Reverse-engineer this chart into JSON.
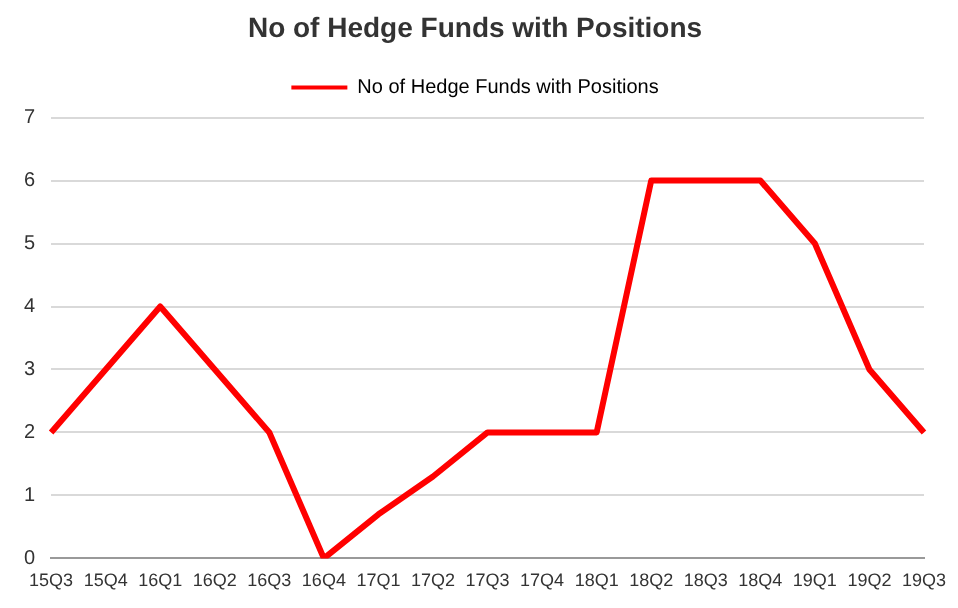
{
  "chart_data": {
    "type": "line",
    "title": "No of Hedge Funds with Positions",
    "categories": [
      "15Q3",
      "15Q4",
      "16Q1",
      "16Q2",
      "16Q3",
      "16Q4",
      "17Q1",
      "17Q2",
      "17Q3",
      "17Q4",
      "18Q1",
      "18Q2",
      "18Q3",
      "18Q4",
      "19Q1",
      "19Q2",
      "19Q3"
    ],
    "series": [
      {
        "name": "No of Hedge Funds with Positions",
        "color": "#ff0000",
        "values": [
          2,
          3,
          4,
          3,
          2,
          0,
          0.7,
          1.3,
          2,
          2,
          2,
          6,
          6,
          6,
          5,
          3,
          2
        ]
      }
    ],
    "ylim": [
      0,
      7
    ],
    "yticks": [
      0,
      1,
      2,
      3,
      4,
      5,
      6,
      7
    ],
    "grid": "y",
    "legend": "top",
    "marker": "none",
    "line_style": "solid"
  }
}
